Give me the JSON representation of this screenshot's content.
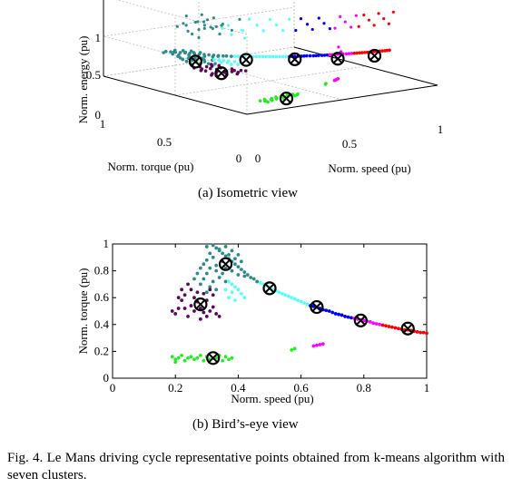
{
  "figure": {
    "caption_label": "Fig. 4.",
    "caption_text": "Le Mans driving cycle representative points obtained from k-means algorithm with seven clusters.",
    "subcaption_a": "(a) Isometric view",
    "subcaption_b": "(b) Bird’s-eye view"
  },
  "chart_data": [
    {
      "type": "scatter",
      "view": "isometric",
      "xlabel": "Norm. speed (pu)",
      "ylabel": "Norm. torque (pu)",
      "zlabel": "Norm. energy (pu)",
      "x_ticks": [
        "0",
        "0.5",
        "1"
      ],
      "y_ticks": [
        "0",
        "0.5",
        "1"
      ],
      "z_ticks": [
        "0",
        "0.5",
        "1"
      ],
      "xlim": [
        0,
        1
      ],
      "ylim": [
        0,
        1
      ],
      "zlim": [
        0,
        1
      ],
      "grid": true,
      "cluster_colors": [
        "#2e8b8b",
        "#55ffff",
        "#0000ff",
        "#ff00ff",
        "#ff0000",
        "#5b0a5b",
        "#22ee22"
      ],
      "centroids_xyz": [
        [
          0.28,
          0.55,
          0.15
        ],
        [
          0.37,
          0.85,
          0.12
        ],
        [
          0.32,
          0.15,
          0.01
        ],
        [
          0.5,
          0.67,
          0.18
        ],
        [
          0.65,
          0.53,
          0.2
        ],
        [
          0.8,
          0.43,
          0.2
        ],
        [
          0.94,
          0.36,
          0.22
        ]
      ]
    },
    {
      "type": "scatter",
      "view": "birds-eye",
      "xlabel": "Norm. speed (pu)",
      "ylabel": "Norm. torque (pu)",
      "xlim": [
        0,
        1
      ],
      "ylim": [
        0,
        1
      ],
      "x_ticks": [
        "0",
        "0.2",
        "0.4",
        "0.6",
        "0.8",
        "1"
      ],
      "y_ticks": [
        "0",
        "0.2",
        "0.4",
        "0.6",
        "0.8",
        "1"
      ],
      "grid": false,
      "series": [
        {
          "color": "#2e8b8b",
          "points": [
            [
              0.32,
              0.99
            ],
            [
              0.33,
              0.97
            ],
            [
              0.34,
              0.95
            ],
            [
              0.35,
              0.93
            ],
            [
              0.36,
              0.91
            ],
            [
              0.37,
              0.89
            ],
            [
              0.38,
              0.87
            ],
            [
              0.39,
              0.85
            ],
            [
              0.4,
              0.83
            ],
            [
              0.41,
              0.81
            ],
            [
              0.42,
              0.79
            ],
            [
              0.43,
              0.77
            ],
            [
              0.44,
              0.75
            ],
            [
              0.45,
              0.74
            ],
            [
              0.46,
              0.72
            ],
            [
              0.3,
              0.98
            ],
            [
              0.31,
              0.93
            ],
            [
              0.32,
              0.9
            ],
            [
              0.3,
              0.88
            ],
            [
              0.29,
              0.85
            ],
            [
              0.31,
              0.82
            ],
            [
              0.33,
              0.8
            ],
            [
              0.35,
              0.78
            ],
            [
              0.3,
              0.78
            ],
            [
              0.28,
              0.82
            ],
            [
              0.27,
              0.78
            ],
            [
              0.29,
              0.74
            ],
            [
              0.32,
              0.72
            ],
            [
              0.34,
              0.75
            ],
            [
              0.36,
              0.72
            ],
            [
              0.26,
              0.74
            ],
            [
              0.28,
              0.7
            ],
            [
              0.31,
              0.68
            ],
            [
              0.33,
              0.66
            ],
            [
              0.3,
              0.64
            ],
            [
              0.34,
              0.96
            ],
            [
              0.36,
              0.98
            ],
            [
              0.38,
              0.95
            ],
            [
              0.4,
              0.92
            ],
            [
              0.37,
              0.92
            ],
            [
              0.39,
              0.89
            ],
            [
              0.41,
              0.87
            ],
            [
              0.35,
              0.87
            ],
            [
              0.33,
              0.84
            ],
            [
              0.36,
              0.82
            ],
            [
              0.38,
              0.8
            ],
            [
              0.4,
              0.77
            ],
            [
              0.42,
              0.76
            ]
          ]
        },
        {
          "color": "#55ffff",
          "points": [
            [
              0.47,
              0.71
            ],
            [
              0.48,
              0.7
            ],
            [
              0.49,
              0.69
            ],
            [
              0.5,
              0.68
            ],
            [
              0.51,
              0.66
            ],
            [
              0.52,
              0.65
            ],
            [
              0.53,
              0.64
            ],
            [
              0.54,
              0.63
            ],
            [
              0.55,
              0.62
            ],
            [
              0.56,
              0.61
            ],
            [
              0.57,
              0.6
            ],
            [
              0.58,
              0.59
            ],
            [
              0.59,
              0.58
            ],
            [
              0.6,
              0.57
            ],
            [
              0.61,
              0.56
            ],
            [
              0.62,
              0.55
            ],
            [
              0.37,
              0.72
            ],
            [
              0.38,
              0.7
            ],
            [
              0.39,
              0.68
            ],
            [
              0.4,
              0.66
            ],
            [
              0.36,
              0.66
            ],
            [
              0.38,
              0.64
            ],
            [
              0.41,
              0.63
            ],
            [
              0.37,
              0.6
            ],
            [
              0.39,
              0.58
            ],
            [
              0.42,
              0.6
            ]
          ]
        },
        {
          "color": "#0000ff",
          "points": [
            [
              0.63,
              0.54
            ],
            [
              0.64,
              0.535
            ],
            [
              0.65,
              0.53
            ],
            [
              0.66,
              0.52
            ],
            [
              0.67,
              0.51
            ],
            [
              0.68,
              0.505
            ],
            [
              0.69,
              0.5
            ],
            [
              0.7,
              0.49
            ],
            [
              0.71,
              0.48
            ],
            [
              0.72,
              0.475
            ],
            [
              0.73,
              0.47
            ],
            [
              0.74,
              0.46
            ],
            [
              0.75,
              0.455
            ],
            [
              0.76,
              0.45
            ]
          ]
        },
        {
          "color": "#ff00ff",
          "points": [
            [
              0.77,
              0.445
            ],
            [
              0.78,
              0.44
            ],
            [
              0.79,
              0.435
            ],
            [
              0.8,
              0.43
            ],
            [
              0.81,
              0.425
            ],
            [
              0.82,
              0.42
            ],
            [
              0.83,
              0.41
            ],
            [
              0.84,
              0.405
            ],
            [
              0.85,
              0.4
            ],
            [
              0.64,
              0.24
            ],
            [
              0.65,
              0.245
            ],
            [
              0.66,
              0.25
            ],
            [
              0.67,
              0.255
            ]
          ]
        },
        {
          "color": "#ff0000",
          "points": [
            [
              0.86,
              0.395
            ],
            [
              0.87,
              0.39
            ],
            [
              0.88,
              0.385
            ],
            [
              0.89,
              0.38
            ],
            [
              0.9,
              0.375
            ],
            [
              0.91,
              0.37
            ],
            [
              0.92,
              0.365
            ],
            [
              0.93,
              0.36
            ],
            [
              0.94,
              0.36
            ],
            [
              0.95,
              0.355
            ],
            [
              0.96,
              0.35
            ],
            [
              0.97,
              0.345
            ],
            [
              0.98,
              0.34
            ],
            [
              0.99,
              0.34
            ],
            [
              1.0,
              0.335
            ]
          ]
        },
        {
          "color": "#5b0a5b",
          "points": [
            [
              0.2,
              0.48
            ],
            [
              0.21,
              0.52
            ],
            [
              0.22,
              0.58
            ],
            [
              0.23,
              0.62
            ],
            [
              0.22,
              0.66
            ],
            [
              0.24,
              0.7
            ],
            [
              0.25,
              0.66
            ],
            [
              0.26,
              0.6
            ],
            [
              0.27,
              0.57
            ],
            [
              0.28,
              0.52
            ],
            [
              0.29,
              0.49
            ],
            [
              0.3,
              0.46
            ],
            [
              0.31,
              0.5
            ],
            [
              0.32,
              0.53
            ],
            [
              0.33,
              0.48
            ],
            [
              0.3,
              0.58
            ],
            [
              0.29,
              0.63
            ],
            [
              0.31,
              0.66
            ],
            [
              0.32,
              0.62
            ],
            [
              0.26,
              0.5
            ],
            [
              0.25,
              0.54
            ],
            [
              0.24,
              0.46
            ],
            [
              0.27,
              0.64
            ],
            [
              0.23,
              0.52
            ],
            [
              0.34,
              0.46
            ],
            [
              0.28,
              0.44
            ],
            [
              0.19,
              0.5
            ],
            [
              0.21,
              0.6
            ]
          ]
        },
        {
          "color": "#22ee22",
          "points": [
            [
              0.19,
              0.16
            ],
            [
              0.2,
              0.14
            ],
            [
              0.21,
              0.15
            ],
            [
              0.22,
              0.17
            ],
            [
              0.23,
              0.13
            ],
            [
              0.24,
              0.15
            ],
            [
              0.25,
              0.16
            ],
            [
              0.26,
              0.14
            ],
            [
              0.27,
              0.15
            ],
            [
              0.28,
              0.17
            ],
            [
              0.29,
              0.13
            ],
            [
              0.3,
              0.16
            ],
            [
              0.31,
              0.14
            ],
            [
              0.33,
              0.15
            ],
            [
              0.34,
              0.17
            ],
            [
              0.35,
              0.13
            ],
            [
              0.36,
              0.16
            ],
            [
              0.37,
              0.14
            ],
            [
              0.38,
              0.15
            ],
            [
              0.2,
              0.12
            ],
            [
              0.57,
              0.21
            ],
            [
              0.58,
              0.22
            ]
          ]
        }
      ],
      "centroids": [
        [
          0.28,
          0.55
        ],
        [
          0.36,
          0.85
        ],
        [
          0.32,
          0.15
        ],
        [
          0.5,
          0.67
        ],
        [
          0.65,
          0.53
        ],
        [
          0.79,
          0.43
        ],
        [
          0.94,
          0.37
        ]
      ]
    }
  ]
}
